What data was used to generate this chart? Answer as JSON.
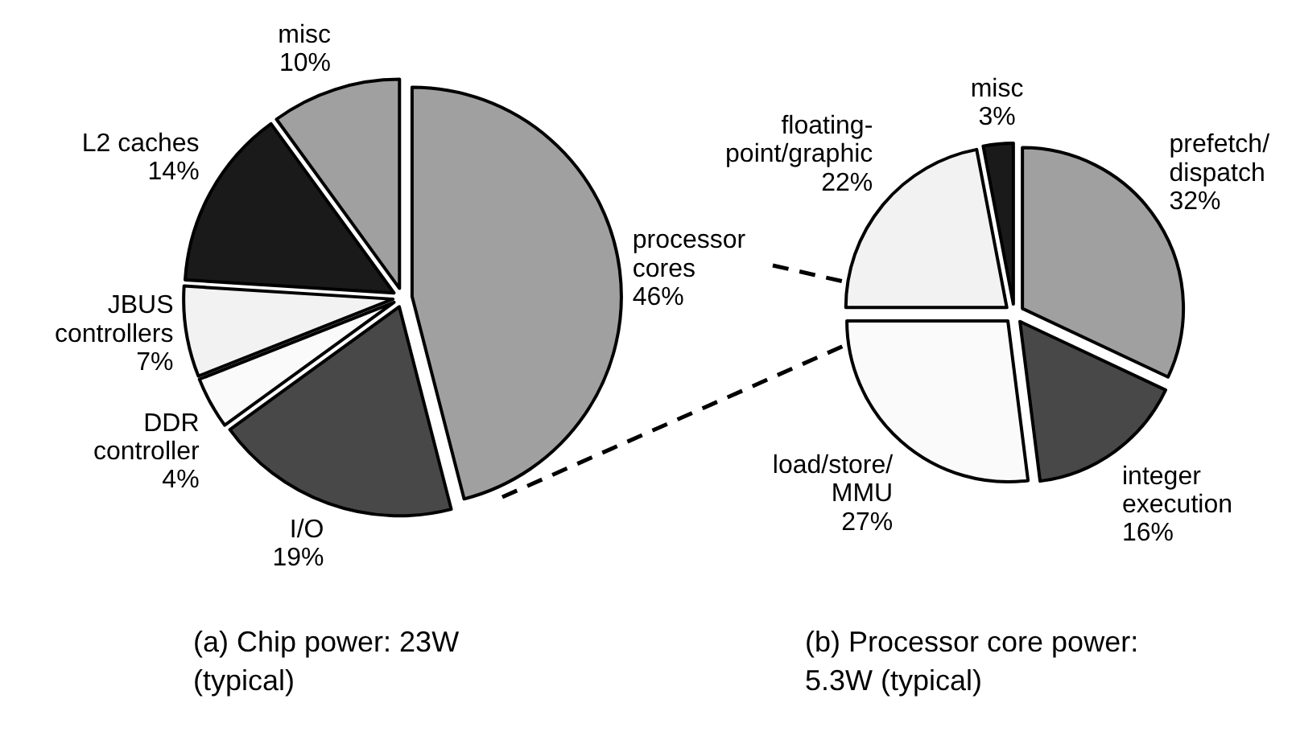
{
  "chart_data": [
    {
      "type": "pie",
      "title": "(a) Chip power: 23W (typical)",
      "categories": [
        "processor cores",
        "I/O",
        "DDR controller",
        "JBUS controllers",
        "L2 caches",
        "misc"
      ],
      "values": [
        46,
        19,
        4,
        7,
        14,
        10
      ],
      "value_labels": [
        "46%",
        "19%",
        "4%",
        "7%",
        "14%",
        "10%"
      ],
      "colors": [
        "#a0a0a0",
        "#484848",
        "#fafafa",
        "#f2f2f2",
        "#1a1a1a",
        "#a0a0a0"
      ]
    },
    {
      "type": "pie",
      "title": "(b) Processor core power: 5.3W (typical)",
      "categories": [
        "prefetch/dispatch",
        "integer execution",
        "load/store/MMU",
        "floating-point/graphic",
        "misc"
      ],
      "values": [
        32,
        16,
        27,
        22,
        3
      ],
      "value_labels": [
        "32%",
        "16%",
        "27%",
        "22%",
        "3%"
      ],
      "colors": [
        "#a0a0a0",
        "#484848",
        "#fafafa",
        "#f2f2f2",
        "#1a1a1a"
      ]
    }
  ]
}
